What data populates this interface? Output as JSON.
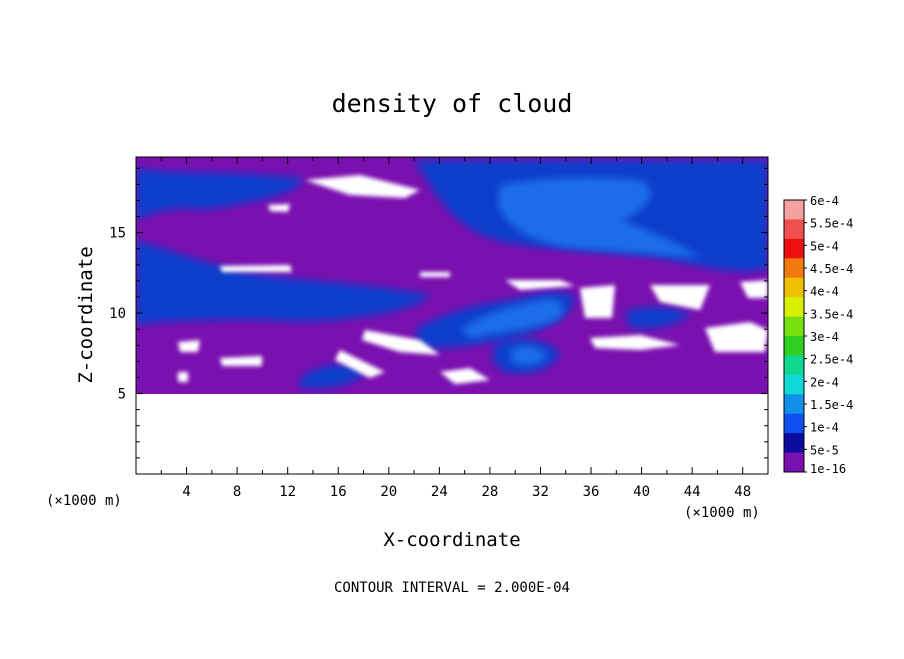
{
  "chart_data": {
    "type": "heatmap",
    "title": "density of cloud",
    "xlabel": "X-coordinate",
    "ylabel": "Z-coordinate",
    "x_unit": "(×1000 m)",
    "z_unit": "(×1000 m)",
    "xlim": [
      0,
      50
    ],
    "ylim": [
      0,
      19.7
    ],
    "x_ticks": [
      4,
      8,
      12,
      16,
      20,
      24,
      28,
      32,
      36,
      40,
      44,
      48
    ],
    "y_ticks": [
      5,
      10,
      15
    ],
    "contour_interval_text": "CONTOUR INTERVAL = 2.000E-04",
    "colorbar": {
      "labels": [
        "6e-4",
        "5.5e-4",
        "5e-4",
        "4.5e-4",
        "4e-4",
        "3.5e-4",
        "3e-4",
        "2.5e-4",
        "2e-4",
        "1.5e-4",
        "1e-4",
        "5e-5",
        "1e-16"
      ],
      "colors": [
        "#f6a0a0",
        "#f05050",
        "#ee1010",
        "#f07a10",
        "#f0c000",
        "#d8f000",
        "#78e010",
        "#30d020",
        "#10d890",
        "#10d8d8",
        "#1090e8",
        "#1050f0",
        "#0c0ca0",
        "#7a10b0"
      ]
    },
    "regions": {
      "background_level": "1e-16",
      "no_cloud_below_z": 5,
      "bands": [
        {
          "x": [
            0,
            12
          ],
          "z": [
            15,
            18.5
          ],
          "level": "5e-5"
        },
        {
          "x": [
            0,
            22
          ],
          "z": [
            9.5,
            13.5
          ],
          "level": "5e-5"
        },
        {
          "x": [
            23,
            50
          ],
          "z": [
            13.5,
            19.5
          ],
          "level": "5e-5"
        },
        {
          "x": [
            26,
            40
          ],
          "z": [
            14,
            18.5
          ],
          "level": "1e-4"
        },
        {
          "x": [
            20,
            35
          ],
          "z": [
            8,
            11
          ],
          "level": "5e-5"
        },
        {
          "x": [
            24,
            34
          ],
          "z": [
            9,
            10.5
          ],
          "level": "1e-4"
        },
        {
          "x": [
            28,
            33
          ],
          "z": [
            6,
            8
          ],
          "level": "5e-5"
        },
        {
          "x": [
            13,
            19
          ],
          "z": [
            5,
            7
          ],
          "level": "5e-5"
        }
      ]
    }
  }
}
